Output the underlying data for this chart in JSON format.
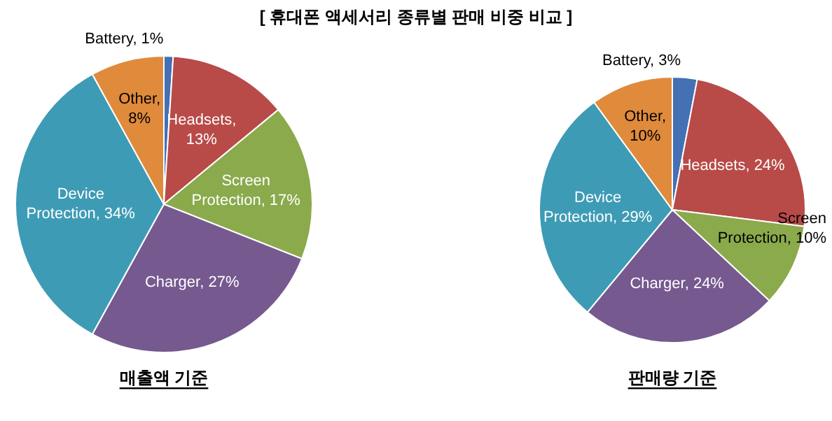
{
  "chart_data": [
    {
      "type": "pie",
      "title": "매출액 기준",
      "annotations": [
        "[ 휴대폰 액세서리 종류별 판매 비중 비교 ]"
      ],
      "categories": [
        "Battery",
        "Headsets",
        "Screen Protection",
        "Charger",
        "Device Protection",
        "Other"
      ],
      "values": [
        1,
        13,
        17,
        27,
        34,
        8
      ],
      "value_labels": [
        ", 1%",
        ", 13%",
        ", 17%",
        ", 27%",
        ", 34%",
        ", 8%"
      ],
      "colors": [
        "#4470b4",
        "#b84a48",
        "#8aaa4c",
        "#76598f",
        "#3e9bb5",
        "#e08a3c"
      ]
    },
    {
      "type": "pie",
      "title": "판매량 기준",
      "categories": [
        "Battery",
        "Headsets",
        "Screen Protection",
        "Charger",
        "Device Protection",
        "Other"
      ],
      "values": [
        3,
        24,
        10,
        24,
        29,
        10
      ],
      "value_labels": [
        ", 3%",
        ", 24%",
        ", 10%",
        ", 24%",
        ", 29%",
        ", 10%"
      ],
      "colors": [
        "#4470b4",
        "#b84a48",
        "#8aaa4c",
        "#76598f",
        "#3e9bb5",
        "#e08a3c"
      ]
    }
  ]
}
